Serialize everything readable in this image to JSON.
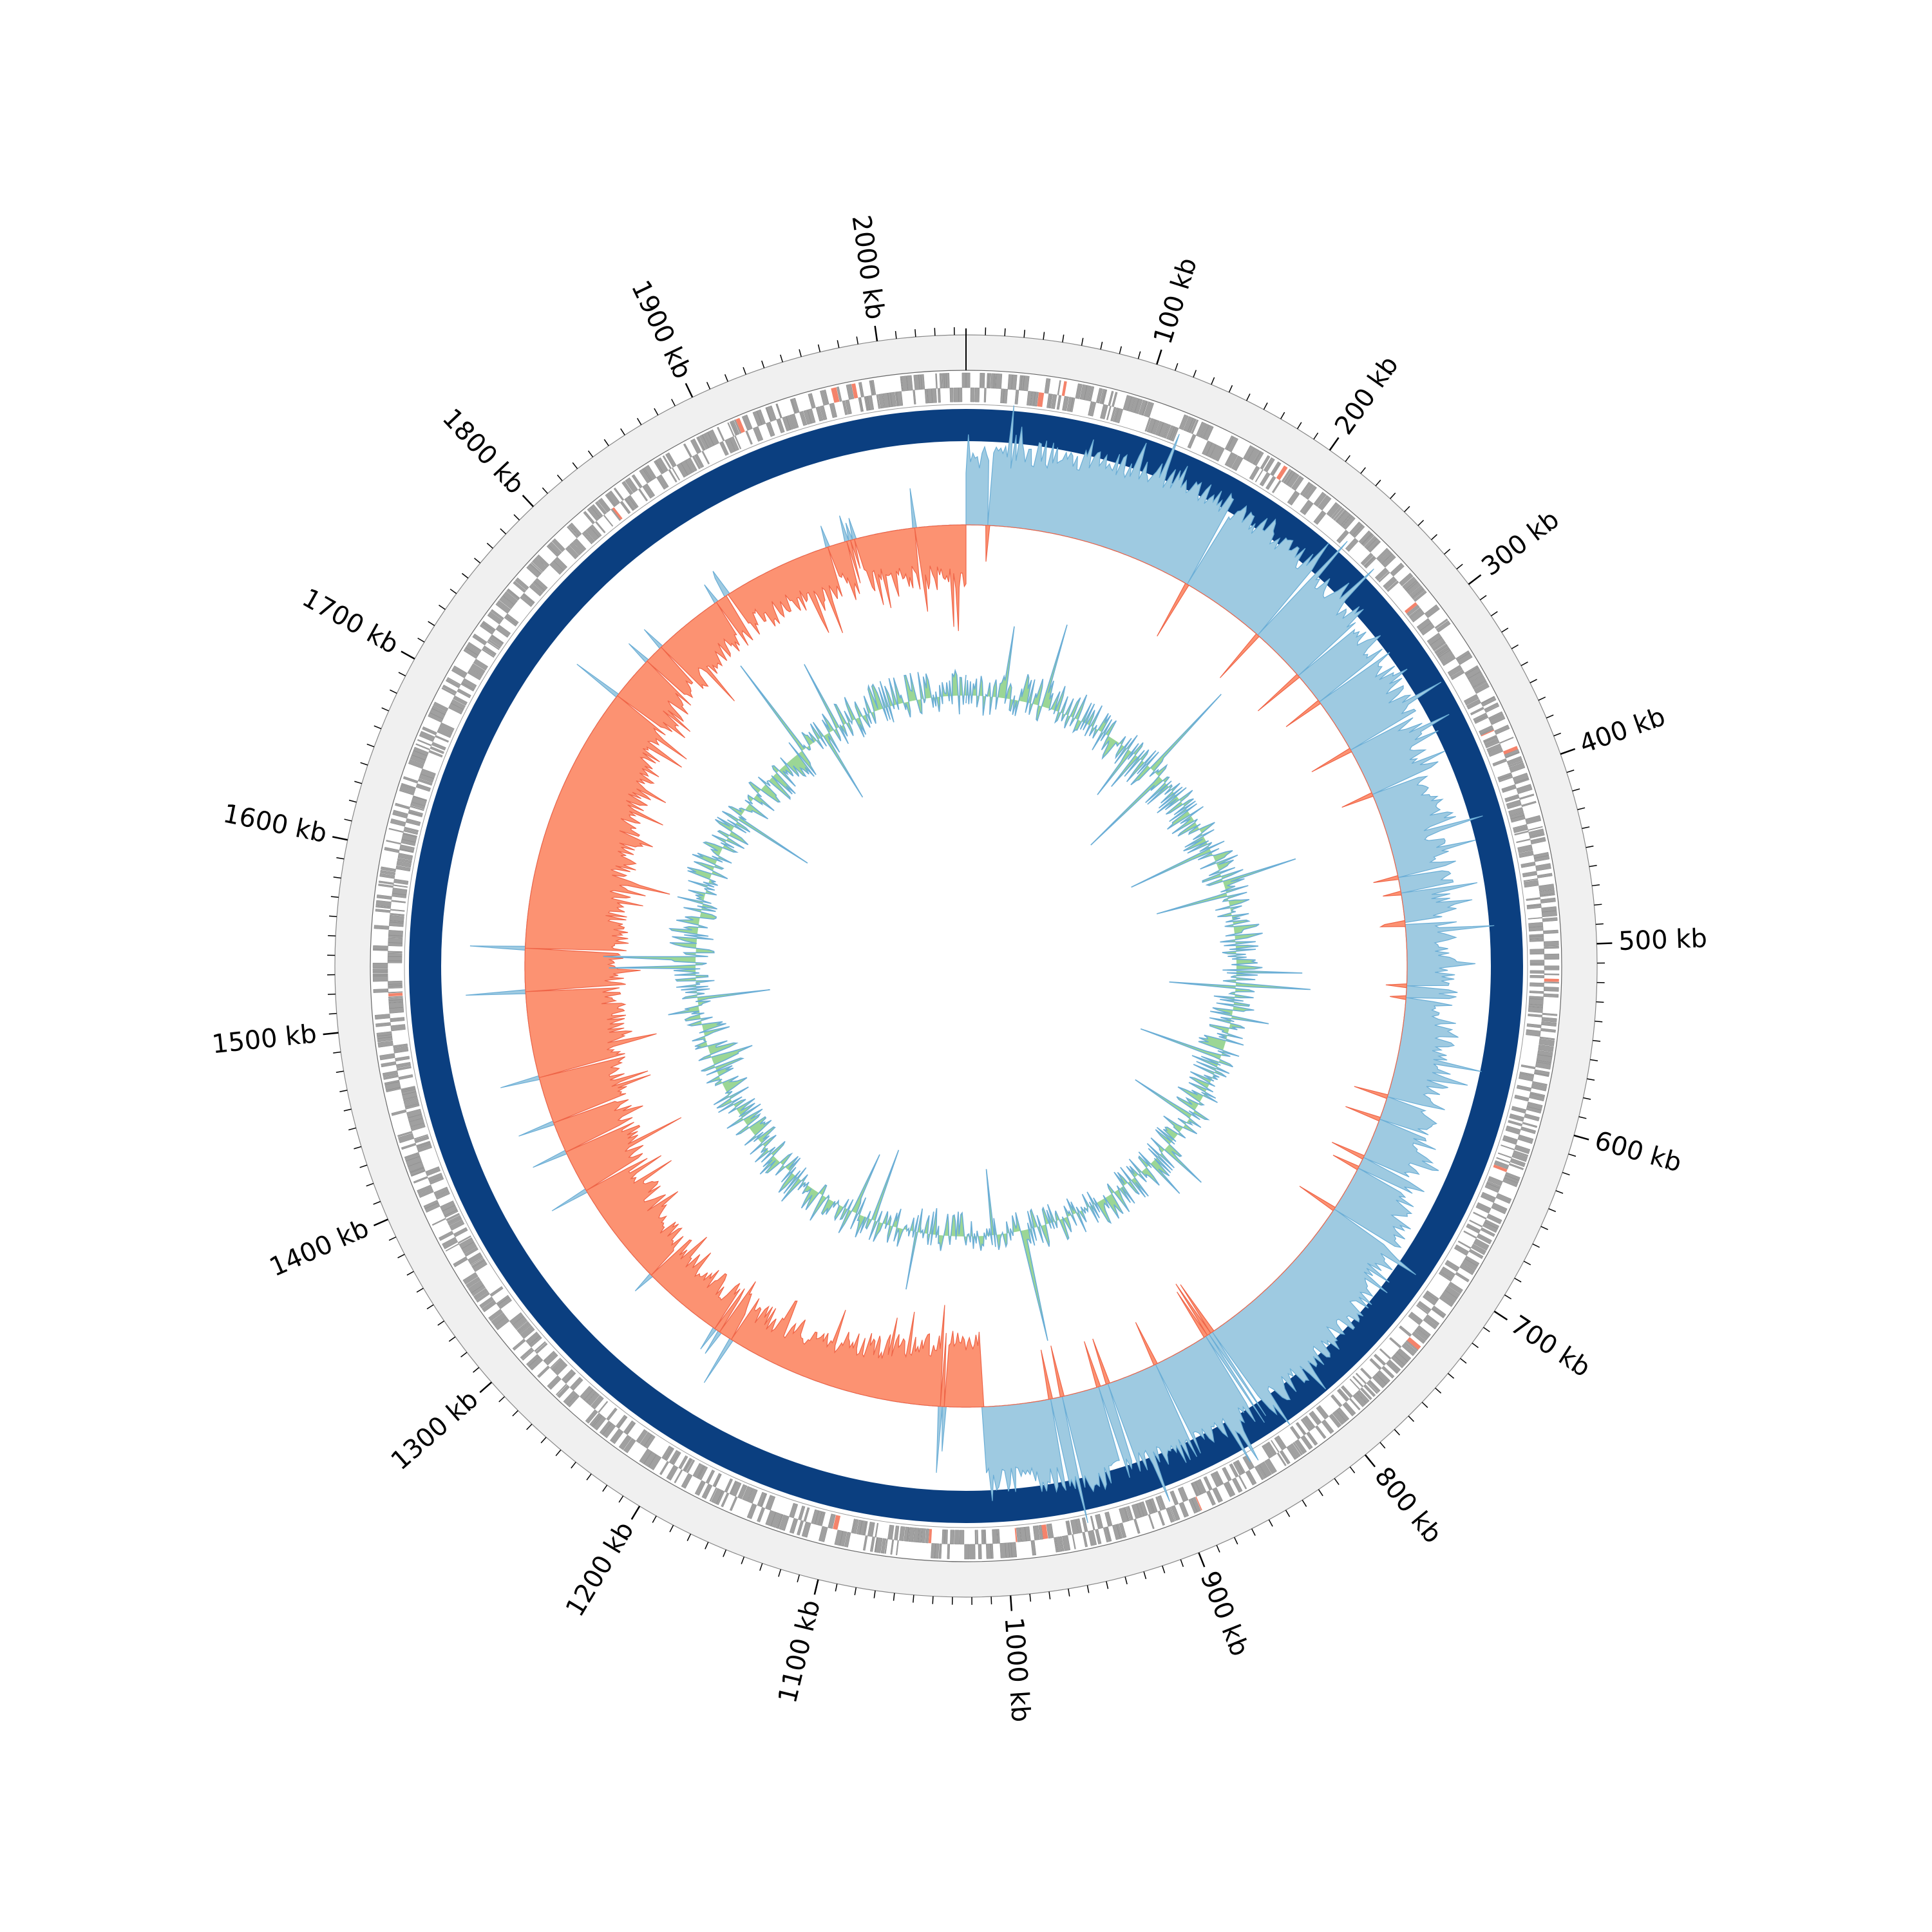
{
  "genome": {
    "length_kb": 2046,
    "origin_kb": 0
  },
  "ticks": {
    "major_kb": [
      100,
      200,
      300,
      400,
      500,
      600,
      700,
      800,
      900,
      1000,
      1100,
      1200,
      1300,
      1400,
      1500,
      1600,
      1700,
      1800,
      1900,
      2000
    ],
    "major_labels": [
      "100 kb",
      "200 kb",
      "300 kb",
      "400 kb",
      "500 kb",
      "600 kb",
      "700 kb",
      "800 kb",
      "900 kb",
      "1000 kb",
      "1100 kb",
      "1200 kb",
      "1300 kb",
      "1400 kb",
      "1500 kb",
      "1600 kb",
      "1700 kb",
      "1800 kb",
      "1900 kb",
      "2000 kb"
    ],
    "minor_step_kb": 10
  },
  "colors": {
    "outer_ring": "#f0f0f0",
    "cds": "#a0a0a0",
    "rna": "#f4836b",
    "backbone": "#0b3f80",
    "gc_skew_positive": "#9ecae1",
    "gc_skew_negative": "#fc9272",
    "gc_skew_line_positive": "#6baed6",
    "gc_skew_line_negative": "#ef6548",
    "gc_content_fill": "#90d28a",
    "gc_content_line": "#6baed6",
    "tick": "#000000"
  },
  "tracks": {
    "gc_skew": {
      "sign_change_kb": [
        0,
        1010
      ]
    }
  }
}
